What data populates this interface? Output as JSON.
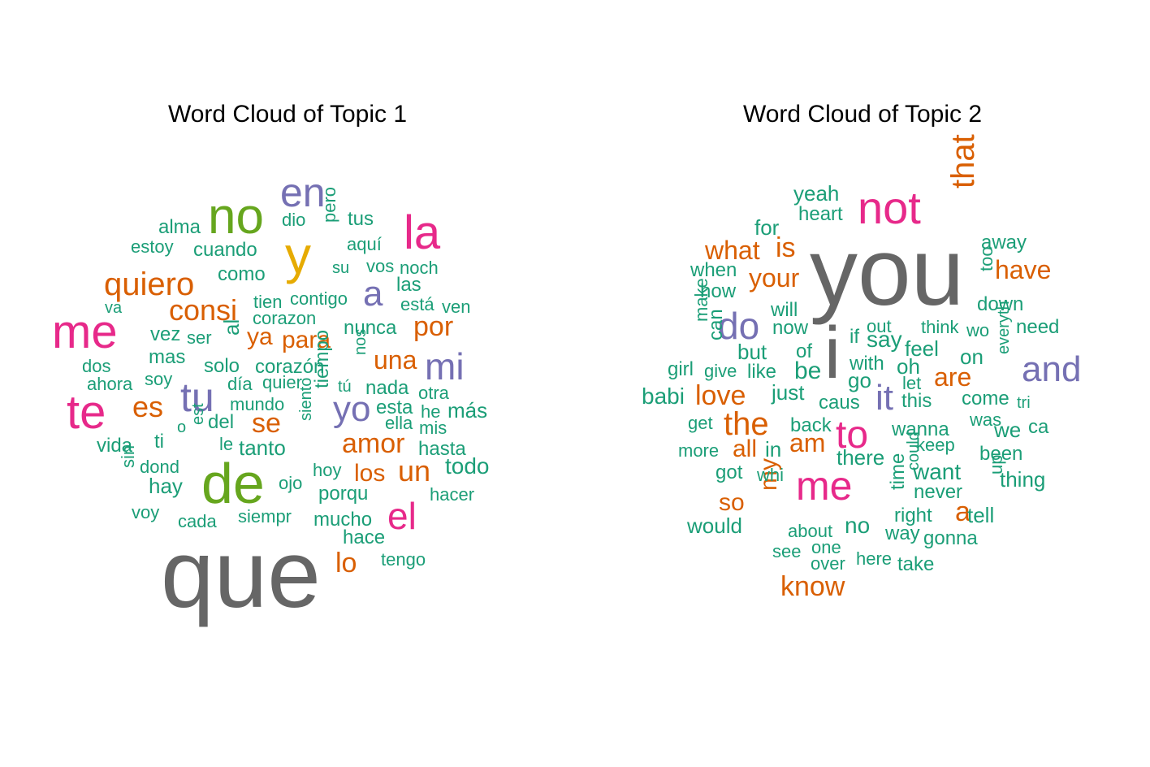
{
  "colors": {
    "gray": "#666666",
    "green": "#1b9e77",
    "orange": "#d95f02",
    "purple": "#7570b3",
    "pink": "#e7298a",
    "lime": "#66a61e",
    "yellow": "#e6ab02"
  },
  "panels": [
    {
      "title": "Word Cloud of Topic  1",
      "words": [
        {
          "text": "que",
          "color": "gray"
        },
        {
          "text": "de",
          "color": "lime"
        },
        {
          "text": "no",
          "color": "lime"
        },
        {
          "text": "y",
          "color": "yellow"
        },
        {
          "text": "en",
          "color": "purple"
        },
        {
          "text": "la",
          "color": "pink"
        },
        {
          "text": "me",
          "color": "pink"
        },
        {
          "text": "te",
          "color": "pink"
        },
        {
          "text": "el",
          "color": "pink"
        },
        {
          "text": "tu",
          "color": "purple"
        },
        {
          "text": "a",
          "color": "purple"
        },
        {
          "text": "mi",
          "color": "purple"
        },
        {
          "text": "yo",
          "color": "purple"
        },
        {
          "text": "quiero",
          "color": "orange"
        },
        {
          "text": "consi",
          "color": "orange"
        },
        {
          "text": "es",
          "color": "orange"
        },
        {
          "text": "se",
          "color": "orange"
        },
        {
          "text": "por",
          "color": "orange"
        },
        {
          "text": "una",
          "color": "orange"
        },
        {
          "text": "ya",
          "color": "orange"
        },
        {
          "text": "para",
          "color": "orange"
        },
        {
          "text": "amor",
          "color": "orange"
        },
        {
          "text": "un",
          "color": "orange"
        },
        {
          "text": "los",
          "color": "orange"
        },
        {
          "text": "lo",
          "color": "orange"
        },
        {
          "text": "alma",
          "color": "green"
        },
        {
          "text": "dio",
          "color": "green"
        },
        {
          "text": "pero",
          "color": "green"
        },
        {
          "text": "tus",
          "color": "green"
        },
        {
          "text": "estoy",
          "color": "green"
        },
        {
          "text": "cuando",
          "color": "green"
        },
        {
          "text": "aquí",
          "color": "green"
        },
        {
          "text": "su",
          "color": "green"
        },
        {
          "text": "vos",
          "color": "green"
        },
        {
          "text": "noch",
          "color": "green"
        },
        {
          "text": "como",
          "color": "green"
        },
        {
          "text": "las",
          "color": "green"
        },
        {
          "text": "va",
          "color": "green"
        },
        {
          "text": "tien",
          "color": "green"
        },
        {
          "text": "contigo",
          "color": "green"
        },
        {
          "text": "está",
          "color": "green"
        },
        {
          "text": "ven",
          "color": "green"
        },
        {
          "text": "corazon",
          "color": "green"
        },
        {
          "text": "vez",
          "color": "green"
        },
        {
          "text": "ser",
          "color": "green"
        },
        {
          "text": "al",
          "color": "green"
        },
        {
          "text": "nunca",
          "color": "green"
        },
        {
          "text": "mas",
          "color": "green"
        },
        {
          "text": "nos",
          "color": "green"
        },
        {
          "text": "dos",
          "color": "green"
        },
        {
          "text": "solo",
          "color": "green"
        },
        {
          "text": "corazón",
          "color": "green"
        },
        {
          "text": "ahora",
          "color": "green"
        },
        {
          "text": "soy",
          "color": "green"
        },
        {
          "text": "día",
          "color": "green"
        },
        {
          "text": "quier",
          "color": "green"
        },
        {
          "text": "tú",
          "color": "green"
        },
        {
          "text": "nada",
          "color": "green"
        },
        {
          "text": "otra",
          "color": "green"
        },
        {
          "text": "mundo",
          "color": "green"
        },
        {
          "text": "tiempo",
          "color": "green"
        },
        {
          "text": "esta",
          "color": "green"
        },
        {
          "text": "he",
          "color": "green"
        },
        {
          "text": "más",
          "color": "green"
        },
        {
          "text": "o",
          "color": "green"
        },
        {
          "text": "est",
          "color": "green"
        },
        {
          "text": "del",
          "color": "green"
        },
        {
          "text": "ella",
          "color": "green"
        },
        {
          "text": "mis",
          "color": "green"
        },
        {
          "text": "siento",
          "color": "green"
        },
        {
          "text": "vida",
          "color": "green"
        },
        {
          "text": "ti",
          "color": "green"
        },
        {
          "text": "le",
          "color": "green"
        },
        {
          "text": "tanto",
          "color": "green"
        },
        {
          "text": "hasta",
          "color": "green"
        },
        {
          "text": "sin",
          "color": "green"
        },
        {
          "text": "dond",
          "color": "green"
        },
        {
          "text": "hoy",
          "color": "green"
        },
        {
          "text": "todo",
          "color": "green"
        },
        {
          "text": "hay",
          "color": "green"
        },
        {
          "text": "ojo",
          "color": "green"
        },
        {
          "text": "porqu",
          "color": "green"
        },
        {
          "text": "hacer",
          "color": "green"
        },
        {
          "text": "voy",
          "color": "green"
        },
        {
          "text": "cada",
          "color": "green"
        },
        {
          "text": "siempr",
          "color": "green"
        },
        {
          "text": "mucho",
          "color": "green"
        },
        {
          "text": "hace",
          "color": "green"
        },
        {
          "text": "tengo",
          "color": "green"
        }
      ]
    },
    {
      "title": "Word Cloud of Topic  2",
      "words": [
        {
          "text": "you",
          "color": "gray"
        },
        {
          "text": "i",
          "color": "gray"
        },
        {
          "text": "not",
          "color": "pink"
        },
        {
          "text": "me",
          "color": "pink"
        },
        {
          "text": "to",
          "color": "pink"
        },
        {
          "text": "that",
          "color": "orange"
        },
        {
          "text": "do",
          "color": "purple"
        },
        {
          "text": "it",
          "color": "purple"
        },
        {
          "text": "and",
          "color": "purple"
        },
        {
          "text": "yeah",
          "color": "green"
        },
        {
          "text": "heart",
          "color": "green"
        },
        {
          "text": "for",
          "color": "green"
        },
        {
          "text": "what",
          "color": "orange"
        },
        {
          "text": "is",
          "color": "orange"
        },
        {
          "text": "your",
          "color": "orange"
        },
        {
          "text": "have",
          "color": "orange"
        },
        {
          "text": "love",
          "color": "orange"
        },
        {
          "text": "the",
          "color": "orange"
        },
        {
          "text": "are",
          "color": "orange"
        },
        {
          "text": "am",
          "color": "orange"
        },
        {
          "text": "all",
          "color": "orange"
        },
        {
          "text": "my",
          "color": "orange"
        },
        {
          "text": "so",
          "color": "orange"
        },
        {
          "text": "a",
          "color": "orange"
        },
        {
          "text": "know",
          "color": "orange"
        },
        {
          "text": "away",
          "color": "green"
        },
        {
          "text": "too",
          "color": "green"
        },
        {
          "text": "down",
          "color": "green"
        },
        {
          "text": "when",
          "color": "green"
        },
        {
          "text": "how",
          "color": "green"
        },
        {
          "text": "make",
          "color": "green"
        },
        {
          "text": "will",
          "color": "green"
        },
        {
          "text": "now",
          "color": "green"
        },
        {
          "text": "out",
          "color": "green"
        },
        {
          "text": "if",
          "color": "green"
        },
        {
          "text": "say",
          "color": "green"
        },
        {
          "text": "think",
          "color": "green"
        },
        {
          "text": "wo",
          "color": "green"
        },
        {
          "text": "need",
          "color": "green"
        },
        {
          "text": "can",
          "color": "green"
        },
        {
          "text": "but",
          "color": "green"
        },
        {
          "text": "of",
          "color": "green"
        },
        {
          "text": "feel",
          "color": "green"
        },
        {
          "text": "everyth",
          "color": "green"
        },
        {
          "text": "on",
          "color": "green"
        },
        {
          "text": "with",
          "color": "green"
        },
        {
          "text": "oh",
          "color": "green"
        },
        {
          "text": "girl",
          "color": "green"
        },
        {
          "text": "give",
          "color": "green"
        },
        {
          "text": "like",
          "color": "green"
        },
        {
          "text": "be",
          "color": "green"
        },
        {
          "text": "go",
          "color": "green"
        },
        {
          "text": "let",
          "color": "green"
        },
        {
          "text": "babi",
          "color": "green"
        },
        {
          "text": "just",
          "color": "green"
        },
        {
          "text": "caus",
          "color": "green"
        },
        {
          "text": "this",
          "color": "green"
        },
        {
          "text": "come",
          "color": "green"
        },
        {
          "text": "tri",
          "color": "green"
        },
        {
          "text": "get",
          "color": "green"
        },
        {
          "text": "back",
          "color": "green"
        },
        {
          "text": "wanna",
          "color": "green"
        },
        {
          "text": "was",
          "color": "green"
        },
        {
          "text": "we",
          "color": "green"
        },
        {
          "text": "ca",
          "color": "green"
        },
        {
          "text": "more",
          "color": "green"
        },
        {
          "text": "in",
          "color": "green"
        },
        {
          "text": "there",
          "color": "green"
        },
        {
          "text": "could",
          "color": "green"
        },
        {
          "text": "keep",
          "color": "green"
        },
        {
          "text": "been",
          "color": "green"
        },
        {
          "text": "got",
          "color": "green"
        },
        {
          "text": "whi",
          "color": "green"
        },
        {
          "text": "time",
          "color": "green"
        },
        {
          "text": "want",
          "color": "green"
        },
        {
          "text": "up",
          "color": "green"
        },
        {
          "text": "thing",
          "color": "green"
        },
        {
          "text": "never",
          "color": "green"
        },
        {
          "text": "would",
          "color": "green"
        },
        {
          "text": "about",
          "color": "green"
        },
        {
          "text": "no",
          "color": "green"
        },
        {
          "text": "right",
          "color": "green"
        },
        {
          "text": "tell",
          "color": "green"
        },
        {
          "text": "one",
          "color": "green"
        },
        {
          "text": "way",
          "color": "green"
        },
        {
          "text": "gonna",
          "color": "green"
        },
        {
          "text": "see",
          "color": "green"
        },
        {
          "text": "over",
          "color": "green"
        },
        {
          "text": "here",
          "color": "green"
        },
        {
          "text": "take",
          "color": "green"
        }
      ]
    }
  ]
}
